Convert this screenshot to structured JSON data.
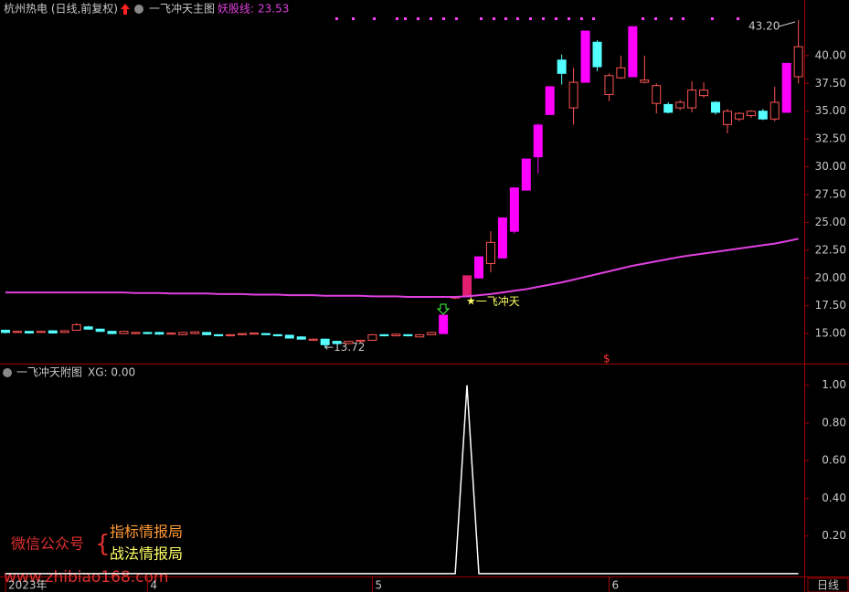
{
  "chart_data": [
    {
      "type": "candlestick",
      "title": "杭州热电 (日线,前复权)",
      "subtitle": "一飞冲天主图",
      "categories": [
        null,
        null,
        null,
        null,
        null,
        null,
        null,
        null,
        null,
        null,
        null,
        null,
        null,
        null,
        null,
        null,
        null,
        null,
        null,
        null,
        null,
        null,
        null,
        null,
        null,
        null,
        null,
        null,
        null,
        null,
        null,
        null,
        null,
        null,
        null,
        null,
        null,
        null,
        null,
        null,
        null,
        null,
        null,
        null,
        null,
        null,
        null,
        null,
        null,
        null,
        null,
        null,
        null,
        null,
        null,
        null,
        null,
        null,
        null,
        null,
        null,
        null,
        null,
        null,
        null,
        null,
        null,
        null
      ],
      "xticks": [
        {
          "value": 0,
          "label": "2023年"
        },
        {
          "value": 12,
          "label": "4"
        },
        {
          "value": 31,
          "label": "5"
        },
        {
          "value": 51,
          "label": "6"
        }
      ],
      "open": [
        15.3,
        15.1,
        15.2,
        15.1,
        15.25,
        15.1,
        15.3,
        15.6,
        15.4,
        15.2,
        15.0,
        15.0,
        15.1,
        15.1,
        14.95,
        14.9,
        15.0,
        15.1,
        14.9,
        14.8,
        14.9,
        14.95,
        15.0,
        14.9,
        14.85,
        14.7,
        14.4,
        14.5,
        14.3,
        14.1,
        14.3,
        14.4,
        14.9,
        14.8,
        14.9,
        14.7,
        14.9,
        15.0,
        18.2,
        18.3,
        20.0,
        21.3,
        21.8,
        24.2,
        27.9,
        30.9,
        34.7,
        39.6,
        35.3,
        37.6,
        41.2,
        36.5,
        38.0,
        38.1,
        37.6,
        35.7,
        35.6,
        35.3,
        35.3,
        36.4,
        35.8,
        33.8,
        34.3,
        34.6,
        35.0,
        34.3,
        34.9,
        38.1
      ],
      "high": [
        15.35,
        15.25,
        15.25,
        15.25,
        15.3,
        15.3,
        15.95,
        15.7,
        15.45,
        15.25,
        15.25,
        15.15,
        15.15,
        15.15,
        15.1,
        15.15,
        15.2,
        15.15,
        14.95,
        14.95,
        15.05,
        15.1,
        15.05,
        14.95,
        14.9,
        14.75,
        14.55,
        14.55,
        14.35,
        14.35,
        14.45,
        14.95,
        14.95,
        15.0,
        14.95,
        14.95,
        15.15,
        16.65,
        18.35,
        20.2,
        21.9,
        24.2,
        25.4,
        28.1,
        30.7,
        33.9,
        37.2,
        40.1,
        38.9,
        42.2,
        41.4,
        38.4,
        40.0,
        42.6,
        40.0,
        37.5,
        35.8,
        36.0,
        37.7,
        37.6,
        35.9,
        35.2,
        34.9,
        35.1,
        35.2,
        37.2,
        39.3,
        43.2
      ],
      "low": [
        15.0,
        15.05,
        15.0,
        15.05,
        15.0,
        15.05,
        15.25,
        15.35,
        15.15,
        14.95,
        14.95,
        14.95,
        14.95,
        14.9,
        14.9,
        14.85,
        14.95,
        14.85,
        14.75,
        14.75,
        14.85,
        14.9,
        14.85,
        14.75,
        14.55,
        14.45,
        14.35,
        13.72,
        14.05,
        14.05,
        14.2,
        14.35,
        14.75,
        14.75,
        14.75,
        14.65,
        14.85,
        15.0,
        18.1,
        18.3,
        20.0,
        20.5,
        21.8,
        24.0,
        27.9,
        29.4,
        34.7,
        37.4,
        33.8,
        37.6,
        38.6,
        35.9,
        37.9,
        38.1,
        37.5,
        34.8,
        34.8,
        35.1,
        34.9,
        36.2,
        34.7,
        33.0,
        34.1,
        34.4,
        34.2,
        34.1,
        34.9,
        37.5
      ],
      "close": [
        15.1,
        15.2,
        15.05,
        15.2,
        15.05,
        15.25,
        15.8,
        15.4,
        15.2,
        15.0,
        15.2,
        15.1,
        15.0,
        14.95,
        15.05,
        15.1,
        15.15,
        14.9,
        14.8,
        14.9,
        15.0,
        15.05,
        14.9,
        14.8,
        14.6,
        14.5,
        14.5,
        14.0,
        14.1,
        14.3,
        14.4,
        14.9,
        14.8,
        14.95,
        14.8,
        14.9,
        15.1,
        16.65,
        18.3,
        20.2,
        21.9,
        23.2,
        25.4,
        28.1,
        30.7,
        33.75,
        37.2,
        38.4,
        37.6,
        42.2,
        39.0,
        38.2,
        38.9,
        42.6,
        37.8,
        37.3,
        34.9,
        35.8,
        36.9,
        36.9,
        34.9,
        35.0,
        34.8,
        35.0,
        34.3,
        35.8,
        39.3,
        40.8
      ],
      "colors": [
        "#54ffff",
        "#ff5454",
        "#54ffff",
        "#ff5454",
        "#54ffff",
        "#ff5454",
        "#ff5454",
        "#54ffff",
        "#54ffff",
        "#54ffff",
        "#ff5454",
        "#ff5454",
        "#54ffff",
        "#54ffff",
        "#ff5454",
        "#ff5454",
        "#ff5454",
        "#54ffff",
        "#54ffff",
        "#ff5454",
        "#ff5454",
        "#ff5454",
        "#54ffff",
        "#54ffff",
        "#54ffff",
        "#54ffff",
        "#ff5454",
        "#54ffff",
        "#54ffff",
        "#ff5454",
        "#ff5454",
        "#ff5454",
        "#54ffff",
        "#ff5454",
        "#54ffff",
        "#ff5454",
        "#ff5454",
        "#ff00ff",
        "#ff5454",
        "#e0206f",
        "#ff00ff",
        "#ff5454",
        "#ff00ff",
        "#ff00ff",
        "#ff00ff",
        "#ff00ff",
        "#ff00ff",
        "#54ffff",
        "#ff5454",
        "#ff00ff",
        "#54ffff",
        "#ff5454",
        "#ff5454",
        "#ff00ff",
        "#ff5454",
        "#ff5454",
        "#54ffff",
        "#ff5454",
        "#ff5454",
        "#ff5454",
        "#54ffff",
        "#ff5454",
        "#ff5454",
        "#ff5454",
        "#54ffff",
        "#ff5454",
        "#ff00ff",
        "#ff5454"
      ],
      "hollow_color": "#ff5454",
      "series": [
        {
          "name": "妖股线:",
          "color": "#e040e0",
          "values": [
            18.7,
            18.7,
            18.7,
            18.7,
            18.7,
            18.7,
            18.7,
            18.7,
            18.7,
            18.7,
            18.7,
            18.65,
            18.65,
            18.65,
            18.6,
            18.6,
            18.6,
            18.6,
            18.55,
            18.55,
            18.55,
            18.5,
            18.5,
            18.5,
            18.45,
            18.45,
            18.45,
            18.4,
            18.4,
            18.4,
            18.4,
            18.35,
            18.35,
            18.35,
            18.3,
            18.3,
            18.3,
            18.3,
            18.3,
            18.35,
            18.45,
            18.55,
            18.7,
            18.85,
            19.0,
            19.2,
            19.4,
            19.6,
            19.85,
            20.1,
            20.35,
            20.6,
            20.85,
            21.1,
            21.3,
            21.5,
            21.7,
            21.9,
            22.05,
            22.2,
            22.35,
            22.5,
            22.65,
            22.8,
            22.95,
            23.1,
            23.3,
            23.53
          ]
        }
      ],
      "ylim": [
        12.3,
        45.0
      ],
      "yticks": [
        {
          "value": 15,
          "label": "15.00"
        },
        {
          "value": 17.5,
          "label": "17.50"
        },
        {
          "value": 20,
          "label": "20.00"
        },
        {
          "value": 22.5,
          "label": "22.50"
        },
        {
          "value": 25,
          "label": "25.00"
        },
        {
          "value": 27.5,
          "label": "27.50"
        },
        {
          "value": 30,
          "label": "30.00"
        },
        {
          "value": 32.5,
          "label": "32.50"
        },
        {
          "value": 35,
          "label": "35.00"
        },
        {
          "value": 37.5,
          "label": "37.50"
        },
        {
          "value": 40,
          "label": "40.00"
        }
      ],
      "annotations": {
        "high": "43.20",
        "low": "13.72",
        "signal": "一飞冲天"
      }
    },
    {
      "type": "line",
      "title": "一飞冲天附图",
      "readout": "XG: 0.00",
      "series": [
        {
          "name": "XG",
          "color": "#ffffff",
          "values": [
            0,
            0,
            0,
            0,
            0,
            0,
            0,
            0,
            0,
            0,
            0,
            0,
            0,
            0,
            0,
            0,
            0,
            0,
            0,
            0,
            0,
            0,
            0,
            0,
            0,
            0,
            0,
            0,
            0,
            0,
            0,
            0,
            0,
            0,
            0,
            0,
            0,
            0,
            0,
            1,
            0,
            0,
            0,
            0,
            0,
            0,
            0,
            0,
            0,
            0,
            0,
            0,
            0,
            0,
            0,
            0,
            0,
            0,
            0,
            0,
            0,
            0,
            0,
            0,
            0,
            0,
            0,
            0
          ]
        }
      ],
      "ylim": [
        -0.015,
        1.115
      ],
      "yticks": [
        {
          "value": 0.2,
          "label": "0.20"
        },
        {
          "value": 0.4,
          "label": "0.40"
        },
        {
          "value": 0.6,
          "label": "0.60"
        },
        {
          "value": 0.8,
          "label": "0.80"
        },
        {
          "value": 1,
          "label": "1.00"
        }
      ]
    }
  ],
  "watermark": {
    "account": "微信公众号",
    "name1": "指标情报局",
    "name2": "战法情报局",
    "url": "www.zhibiao168.com"
  },
  "period": "日线"
}
